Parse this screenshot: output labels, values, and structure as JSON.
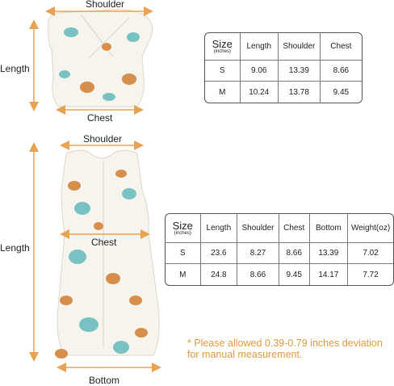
{
  "colors": {
    "arrow": "#e7a353",
    "accent_note": "#e39a3e",
    "leaf": "#79c2c4",
    "tiger": "#d68f4a",
    "garment": "#f7f4ee"
  },
  "top_garment": {
    "shoulder_label": "Shoulder",
    "length_label": "Length",
    "chest_label": "Chest"
  },
  "bottom_garment": {
    "shoulder_label": "Shoulder",
    "length_label": "Length",
    "chest_label": "Chest",
    "bottom_label": "Bottom"
  },
  "table_small": {
    "size_header": "Size",
    "unit": "(inches)",
    "headers": [
      "Length",
      "Shoulder",
      "Chest"
    ],
    "rows": [
      {
        "size": "S",
        "cells": [
          "9.06",
          "13.39",
          "8.66"
        ]
      },
      {
        "size": "M",
        "cells": [
          "10.24",
          "13.78",
          "9.45"
        ]
      }
    ]
  },
  "table_large": {
    "size_header": "Size",
    "unit": "(inches)",
    "headers": [
      "Length",
      "Shoulder",
      "Chest",
      "Bottom",
      "Weight(oz)"
    ],
    "rows": [
      {
        "size": "S",
        "cells": [
          "23.6",
          "8.27",
          "8.66",
          "13.39",
          "7.02"
        ]
      },
      {
        "size": "M",
        "cells": [
          "24.8",
          "8.66",
          "9.45",
          "14.17",
          "7.72"
        ]
      }
    ]
  },
  "note": "* Please allowed 0.39-0.79 inches deviation for manual measurement."
}
